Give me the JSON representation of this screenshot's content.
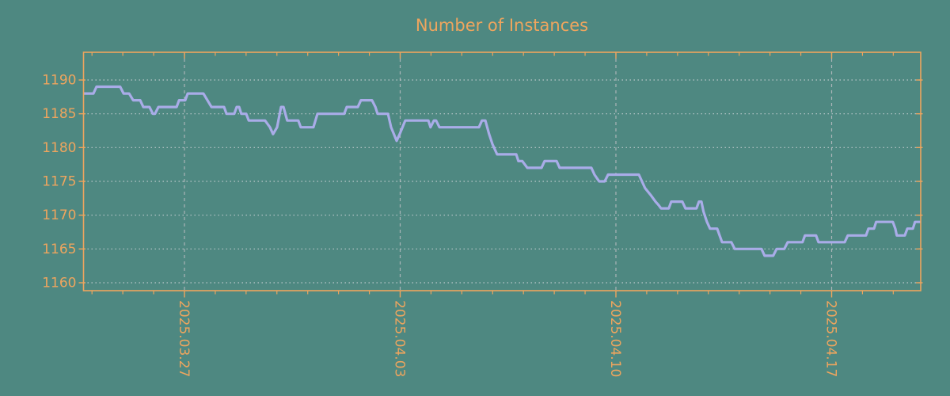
{
  "title": "Number of Instances",
  "colors": {
    "background": "#4e8881",
    "accent_orange": "#eea55e",
    "line_lavender": "#a9ace8",
    "grid_dotted": "#cfd5d8",
    "grid_dashed": "#b4babd"
  },
  "chart_data": {
    "type": "line",
    "title": "Number of Instances",
    "grid": true,
    "legend_position": "none",
    "x_axis": {
      "unit": "days",
      "range_days": [
        0,
        27.16
      ],
      "minor_tick_first_day": 0.275,
      "minor_tick_step_days": 1,
      "major_ticks": [
        {
          "day": 3.275,
          "label": "2025.03.27"
        },
        {
          "day": 10.275,
          "label": "2025.04.03"
        },
        {
          "day": 17.275,
          "label": "2025.04.10"
        },
        {
          "day": 24.275,
          "label": "2025.04.17"
        }
      ]
    },
    "y_axis": {
      "ticks": [
        1160,
        1165,
        1170,
        1175,
        1180,
        1185,
        1190
      ],
      "range": [
        1158.8,
        1194.1
      ]
    },
    "series": [
      {
        "name": "instances",
        "color": "#a9ace8",
        "points": [
          [
            0,
            1188
          ],
          [
            0.32,
            1188
          ],
          [
            0.42,
            1189
          ],
          [
            1.19,
            1189
          ],
          [
            1.3,
            1188
          ],
          [
            1.48,
            1188
          ],
          [
            1.61,
            1187
          ],
          [
            1.84,
            1187
          ],
          [
            1.94,
            1186
          ],
          [
            2.14,
            1186
          ],
          [
            2.25,
            1185
          ],
          [
            2.32,
            1185
          ],
          [
            2.43,
            1186
          ],
          [
            3.02,
            1186
          ],
          [
            3.1,
            1187
          ],
          [
            3.3,
            1187
          ],
          [
            3.38,
            1188
          ],
          [
            3.89,
            1188
          ],
          [
            4.02,
            1187
          ],
          [
            4.15,
            1186
          ],
          [
            4.56,
            1186
          ],
          [
            4.64,
            1185
          ],
          [
            4.89,
            1185
          ],
          [
            4.97,
            1186
          ],
          [
            5.05,
            1186
          ],
          [
            5.12,
            1185
          ],
          [
            5.28,
            1185
          ],
          [
            5.36,
            1184
          ],
          [
            5.77,
            1184
          ],
          [
            5.89,
            1184
          ],
          [
            6.05,
            1183
          ],
          [
            6.15,
            1182
          ],
          [
            6.28,
            1183
          ],
          [
            6.41,
            1186
          ],
          [
            6.49,
            1186
          ],
          [
            6.61,
            1184
          ],
          [
            6.97,
            1184
          ],
          [
            7.05,
            1183
          ],
          [
            7.46,
            1183
          ],
          [
            7.59,
            1185
          ],
          [
            8.46,
            1185
          ],
          [
            8.54,
            1186
          ],
          [
            8.9,
            1186
          ],
          [
            9.0,
            1187
          ],
          [
            9.36,
            1187
          ],
          [
            9.47,
            1186
          ],
          [
            9.54,
            1185
          ],
          [
            9.88,
            1185
          ],
          [
            9.98,
            1183
          ],
          [
            10.16,
            1181
          ],
          [
            10.26,
            1182
          ],
          [
            10.44,
            1184
          ],
          [
            11.19,
            1184
          ],
          [
            11.26,
            1183
          ],
          [
            11.37,
            1184
          ],
          [
            11.44,
            1184
          ],
          [
            11.55,
            1183
          ],
          [
            12.83,
            1183
          ],
          [
            12.93,
            1184
          ],
          [
            13.04,
            1184
          ],
          [
            13.16,
            1182
          ],
          [
            13.27,
            1180.5
          ],
          [
            13.42,
            1179
          ],
          [
            13.47,
            1179
          ],
          [
            14.04,
            1179
          ],
          [
            14.11,
            1178
          ],
          [
            14.24,
            1178
          ],
          [
            14.4,
            1177
          ],
          [
            14.86,
            1177
          ],
          [
            14.96,
            1178
          ],
          [
            15.35,
            1178
          ],
          [
            15.45,
            1177
          ],
          [
            16.48,
            1177
          ],
          [
            16.58,
            1176
          ],
          [
            16.73,
            1175
          ],
          [
            16.91,
            1175
          ],
          [
            17.02,
            1176
          ],
          [
            18.02,
            1176
          ],
          [
            18.12,
            1175
          ],
          [
            18.22,
            1174
          ],
          [
            18.4,
            1173
          ],
          [
            18.56,
            1172
          ],
          [
            18.66,
            1171.5
          ],
          [
            18.74,
            1171
          ],
          [
            18.99,
            1171
          ],
          [
            19.07,
            1172
          ],
          [
            19.43,
            1172
          ],
          [
            19.53,
            1171
          ],
          [
            19.89,
            1171
          ],
          [
            19.97,
            1172
          ],
          [
            20.05,
            1172
          ],
          [
            20.12,
            1170.5
          ],
          [
            20.23,
            1169
          ],
          [
            20.33,
            1168
          ],
          [
            20.56,
            1168
          ],
          [
            20.64,
            1167
          ],
          [
            20.72,
            1166
          ],
          [
            21.02,
            1166
          ],
          [
            21.13,
            1165
          ],
          [
            22.0,
            1165
          ],
          [
            22.1,
            1164
          ],
          [
            22.38,
            1164
          ],
          [
            22.49,
            1165
          ],
          [
            22.74,
            1165
          ],
          [
            22.85,
            1166
          ],
          [
            23.33,
            1166
          ],
          [
            23.41,
            1167
          ],
          [
            23.77,
            1167
          ],
          [
            23.85,
            1166
          ],
          [
            24.7,
            1166
          ],
          [
            24.8,
            1167
          ],
          [
            25.39,
            1167
          ],
          [
            25.47,
            1168
          ],
          [
            25.65,
            1168
          ],
          [
            25.72,
            1169
          ],
          [
            26.26,
            1169
          ],
          [
            26.34,
            1168
          ],
          [
            26.39,
            1167
          ],
          [
            26.65,
            1167
          ],
          [
            26.73,
            1168
          ],
          [
            26.91,
            1168
          ],
          [
            26.98,
            1169
          ],
          [
            27.16,
            1169
          ]
        ]
      }
    ]
  }
}
